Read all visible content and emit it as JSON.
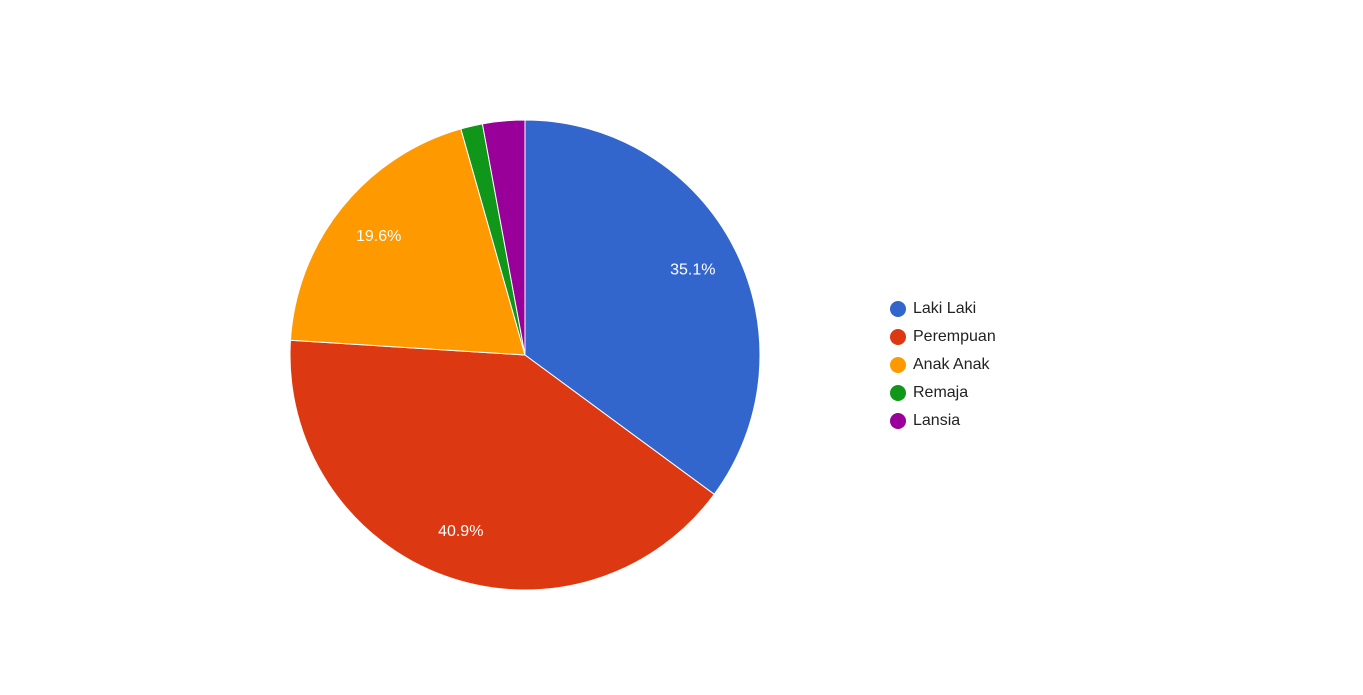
{
  "chart_data": {
    "type": "pie",
    "categories": [
      "Laki Laki",
      "Perempuan",
      "Anak Anak",
      "Remaja",
      "Lansia"
    ],
    "values": [
      35.1,
      40.9,
      19.6,
      1.5,
      2.9
    ],
    "value_labels": [
      "35.1%",
      "40.9%",
      "19.6%",
      null,
      null
    ],
    "colors": [
      "#3366cc",
      "#dc3912",
      "#ff9900",
      "#109618",
      "#990099"
    ],
    "legend": "right"
  }
}
